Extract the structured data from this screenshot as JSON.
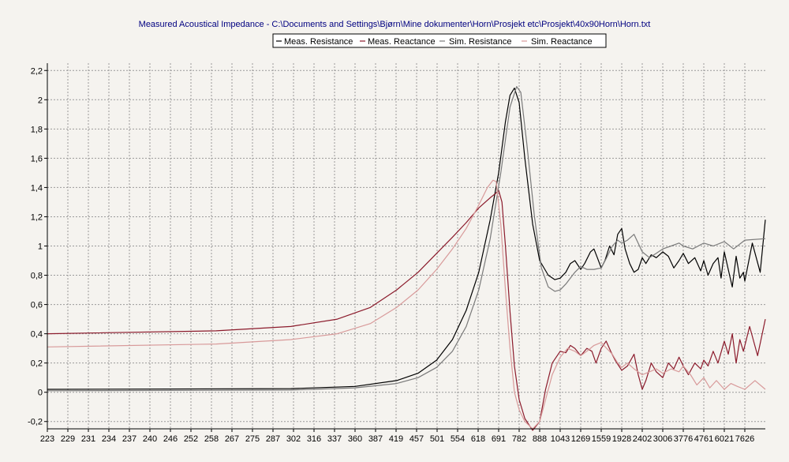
{
  "chart_data": {
    "type": "line",
    "title": "Measured Acoustical Impedance - C:\\Documents and Settings\\Bjørn\\Mine dokumenter\\Horn\\Prosjekt etc\\Prosjekt\\40x90Horn\\Horn.txt",
    "xlabel": "",
    "ylabel": "",
    "xscale": "log",
    "xlim": [
      223,
      8400
    ],
    "ylim": [
      -0.25,
      2.25
    ],
    "grid": true,
    "legend_position": "top-center",
    "x_ticks": [
      223,
      229,
      231,
      234,
      237,
      240,
      246,
      252,
      258,
      267,
      275,
      287,
      302,
      316,
      337,
      360,
      387,
      419,
      457,
      501,
      554,
      618,
      691,
      782,
      888,
      1043,
      1269,
      1559,
      1928,
      2402,
      3006,
      3776,
      4761,
      6021,
      7626
    ],
    "y_ticks": [
      "-0,2",
      "0",
      "0,2",
      "0,4",
      "0,6",
      "0,8",
      "1",
      "1,2",
      "1,4",
      "1,6",
      "1,8",
      "2",
      "2,2"
    ],
    "y_tick_values": [
      -0.2,
      0,
      0.2,
      0.4,
      0.6,
      0.8,
      1,
      1.2,
      1.4,
      1.6,
      1.8,
      2,
      2.2
    ],
    "series": [
      {
        "name": "Meas. Resistance",
        "color": "#000000",
        "x": [
          223,
          300,
          360,
          420,
          460,
          500,
          540,
          580,
          620,
          660,
          691,
          720,
          740,
          760,
          782,
          810,
          850,
          888,
          950,
          1000,
          1043,
          1100,
          1150,
          1200,
          1269,
          1320,
          1400,
          1450,
          1500,
          1559,
          1620,
          1700,
          1780,
          1850,
          1928,
          2000,
          2100,
          2200,
          2300,
          2402,
          2500,
          2650,
          2800,
          3006,
          3200,
          3400,
          3600,
          3776,
          4000,
          4300,
          4600,
          4761,
          5000,
          5300,
          5600,
          5800,
          6021,
          6300,
          6600,
          6900,
          7200,
          7500,
          7626,
          7900,
          8200,
          8400
        ],
        "y": [
          0.02,
          0.025,
          0.04,
          0.08,
          0.13,
          0.22,
          0.36,
          0.56,
          0.82,
          1.18,
          1.5,
          1.85,
          2.03,
          2.08,
          1.98,
          1.6,
          1.15,
          0.9,
          0.8,
          0.77,
          0.78,
          0.82,
          0.88,
          0.9,
          0.84,
          0.88,
          0.96,
          0.98,
          0.92,
          0.85,
          0.9,
          1.0,
          0.94,
          1.08,
          1.12,
          0.98,
          0.88,
          0.82,
          0.84,
          0.92,
          0.88,
          0.94,
          0.92,
          0.96,
          0.93,
          0.85,
          0.9,
          0.95,
          0.88,
          0.92,
          0.83,
          0.9,
          0.8,
          0.88,
          0.92,
          0.78,
          0.96,
          0.84,
          0.72,
          0.93,
          0.78,
          0.82,
          0.76,
          1.02,
          0.82,
          1.18
        ]
      },
      {
        "name": "Meas. Reactance",
        "color": "#8b1a2b",
        "x": [
          223,
          260,
          300,
          340,
          380,
          420,
          460,
          500,
          540,
          580,
          620,
          660,
          680,
          691,
          705,
          720,
          740,
          760,
          782,
          810,
          850,
          888,
          930,
          980,
          1043,
          1100,
          1150,
          1200,
          1269,
          1350,
          1420,
          1480,
          1559,
          1640,
          1720,
          1800,
          1928,
          2050,
          2200,
          2300,
          2402,
          2500,
          2650,
          2800,
          3006,
          3200,
          3400,
          3600,
          3776,
          4000,
          4300,
          4600,
          4761,
          5000,
          5300,
          5600,
          6021,
          6300,
          6600,
          6900,
          7200,
          7500,
          7800,
          8100,
          8400
        ],
        "y": [
          0.4,
          0.42,
          0.45,
          0.5,
          0.58,
          0.7,
          0.82,
          0.95,
          1.06,
          1.16,
          1.26,
          1.33,
          1.36,
          1.38,
          1.3,
          1.0,
          0.55,
          0.18,
          -0.05,
          -0.18,
          -0.26,
          -0.2,
          0.02,
          0.2,
          0.28,
          0.27,
          0.32,
          0.3,
          0.25,
          0.3,
          0.28,
          0.2,
          0.3,
          0.35,
          0.28,
          0.22,
          0.15,
          0.18,
          0.26,
          0.12,
          0.02,
          0.08,
          0.2,
          0.14,
          0.1,
          0.2,
          0.16,
          0.24,
          0.18,
          0.12,
          0.2,
          0.16,
          0.22,
          0.18,
          0.28,
          0.2,
          0.35,
          0.26,
          0.4,
          0.2,
          0.36,
          0.28,
          0.45,
          0.25,
          0.5
        ]
      },
      {
        "name": "Sim. Resistance",
        "color": "#7a7a7a",
        "x": [
          223,
          300,
          360,
          420,
          460,
          500,
          540,
          580,
          620,
          660,
          700,
          740,
          770,
          790,
          820,
          860,
          900,
          950,
          1000,
          1043,
          1100,
          1200,
          1269,
          1350,
          1450,
          1559,
          1650,
          1750,
          1850,
          1928,
          2050,
          2200,
          2402,
          2600,
          2800,
          3006,
          3300,
          3600,
          3776,
          4200,
          4761,
          5300,
          6021,
          6700,
          7626,
          8400
        ],
        "y": [
          0.01,
          0.015,
          0.03,
          0.06,
          0.1,
          0.17,
          0.28,
          0.45,
          0.7,
          1.05,
          1.5,
          1.95,
          2.09,
          2.05,
          1.7,
          1.2,
          0.85,
          0.72,
          0.69,
          0.7,
          0.74,
          0.82,
          0.86,
          0.84,
          0.84,
          0.85,
          0.92,
          1.0,
          1.04,
          1.02,
          1.04,
          1.08,
          0.96,
          0.92,
          0.95,
          0.98,
          1.0,
          1.02,
          1.0,
          0.98,
          1.02,
          1.0,
          1.03,
          0.98,
          1.04,
          1.05
        ]
      },
      {
        "name": "Sim. Reactance",
        "color": "#d89a9a",
        "x": [
          223,
          260,
          300,
          340,
          380,
          420,
          460,
          500,
          540,
          580,
          620,
          650,
          670,
          682,
          700,
          720,
          740,
          760,
          782,
          810,
          850,
          888,
          930,
          980,
          1043,
          1120,
          1200,
          1269,
          1350,
          1450,
          1559,
          1650,
          1750,
          1850,
          1928,
          2050,
          2200,
          2402,
          2600,
          2800,
          3006,
          3300,
          3600,
          3776,
          4100,
          4400,
          4761,
          5100,
          5500,
          6021,
          6500,
          7000,
          7626,
          8000,
          8400
        ],
        "y": [
          0.31,
          0.33,
          0.36,
          0.4,
          0.47,
          0.58,
          0.7,
          0.84,
          0.98,
          1.12,
          1.28,
          1.4,
          1.45,
          1.44,
          1.15,
          0.7,
          0.3,
          0.0,
          -0.12,
          -0.2,
          -0.25,
          -0.2,
          -0.05,
          0.12,
          0.24,
          0.3,
          0.28,
          0.25,
          0.28,
          0.32,
          0.34,
          0.3,
          0.26,
          0.2,
          0.17,
          0.2,
          0.16,
          0.12,
          0.14,
          0.16,
          0.13,
          0.16,
          0.14,
          0.18,
          0.12,
          0.05,
          0.1,
          0.03,
          0.08,
          0.02,
          0.06,
          0.04,
          0.02,
          0.08,
          0.02
        ]
      }
    ]
  }
}
